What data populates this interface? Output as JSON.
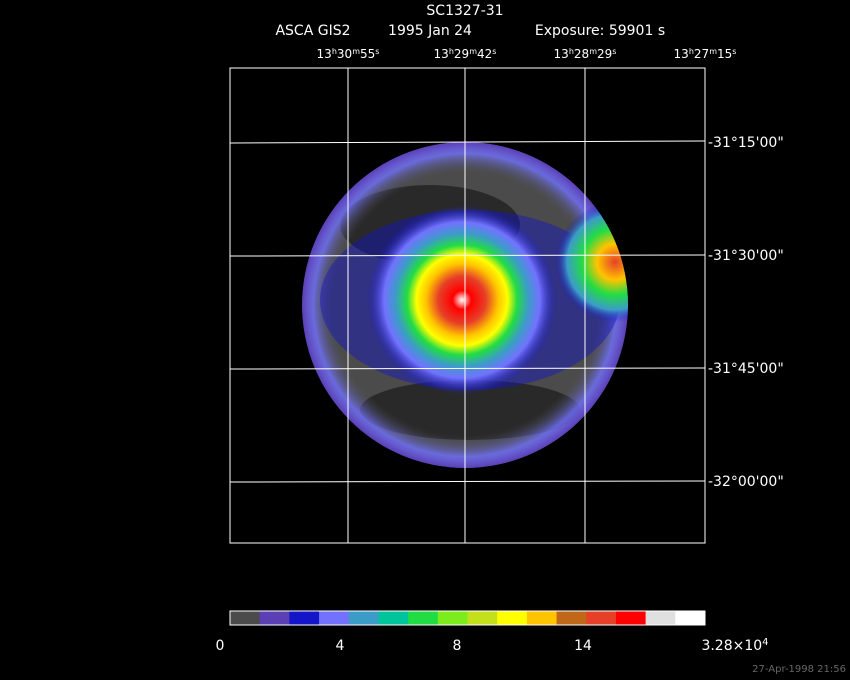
{
  "header": {
    "title": "SC1327-31",
    "instrument": "ASCA GIS2",
    "date": "1995 Jan 24",
    "exposure": "Exposure: 59901 s"
  },
  "ra_labels": [
    {
      "parts": [
        "13",
        "h",
        "30",
        "m",
        "55",
        "s"
      ]
    },
    {
      "parts": [
        "13",
        "h",
        "29",
        "m",
        "42",
        "s"
      ]
    },
    {
      "parts": [
        "13",
        "h",
        "28",
        "m",
        "29",
        "s"
      ]
    },
    {
      "parts": [
        "13",
        "h",
        "27",
        "m",
        "15",
        "s"
      ]
    }
  ],
  "dec_labels": [
    "-31°15'00\"",
    "-31°30'00\"",
    "-31°45'00\"",
    "-32°00'00\""
  ],
  "colorbar": {
    "colors": [
      "#4b4b4b",
      "#5b3fb5",
      "#1414c8",
      "#7272ff",
      "#3c9cc8",
      "#00c49c",
      "#22dc44",
      "#7cec1c",
      "#c4e01c",
      "#ffff00",
      "#ffc400",
      "#c06818",
      "#e64028",
      "#ff0000",
      "#e0e0e0",
      "#ffffff"
    ],
    "labels": [
      "0",
      "4",
      "8",
      "14"
    ],
    "max_label": {
      "mantissa": "3.28×10",
      "exponent": "4"
    }
  },
  "timestamp": "27-Apr-1998 21:56"
}
